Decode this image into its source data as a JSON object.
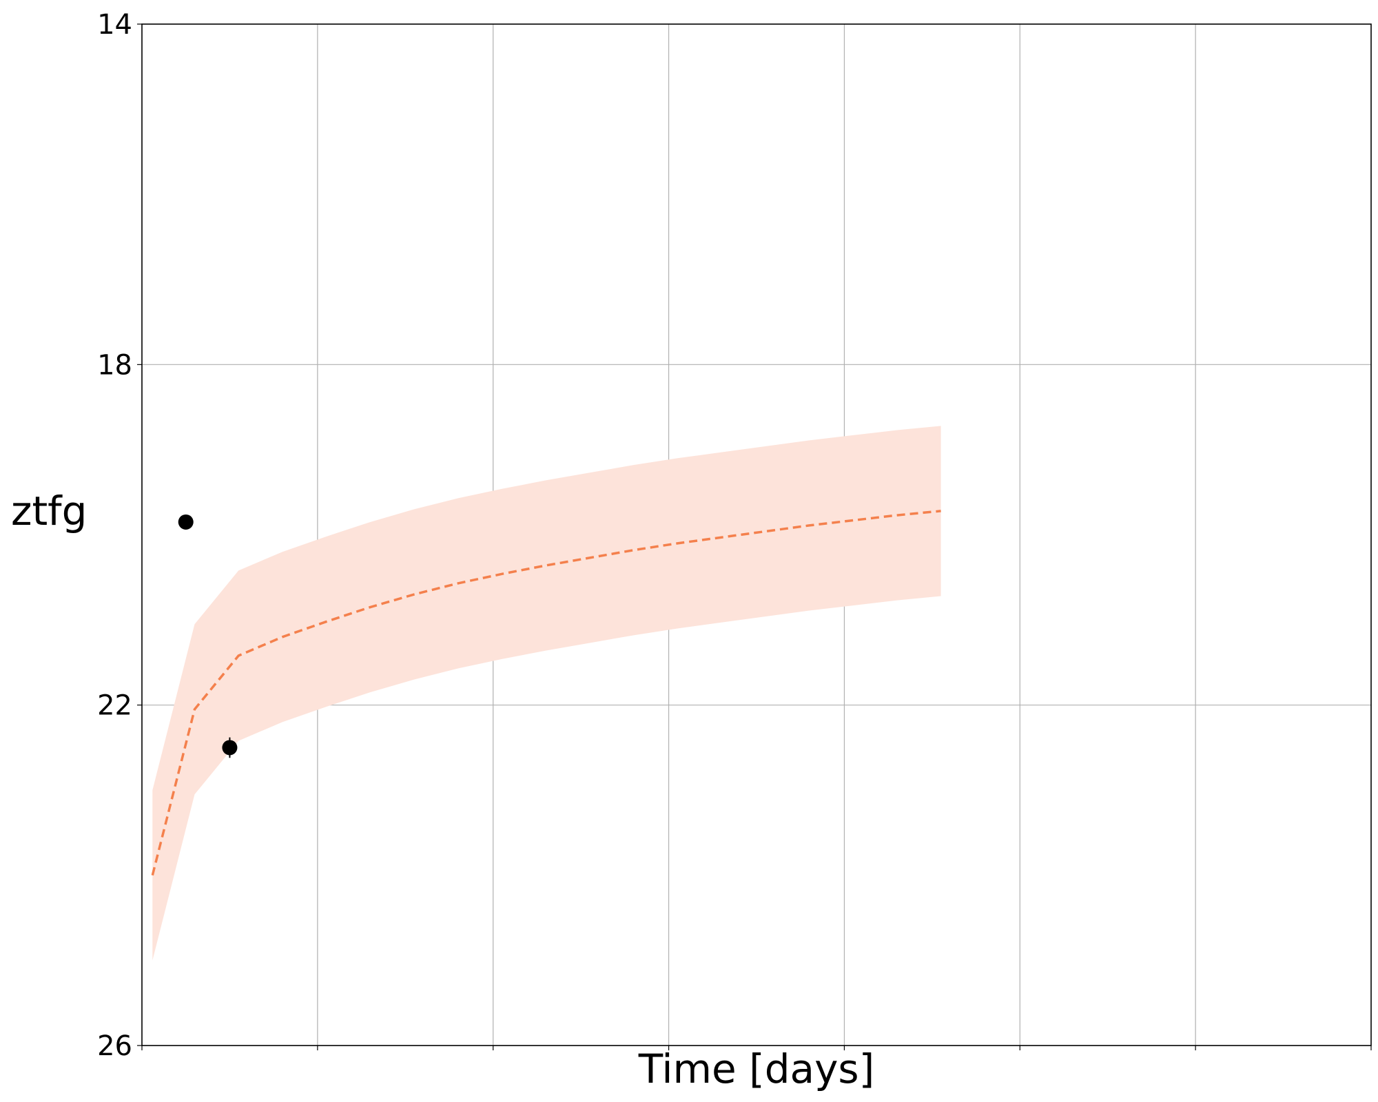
{
  "chart_data": {
    "type": "line",
    "xlabel": "Time [days]",
    "ylabel": "ztfg",
    "x_tick_labels_shown": false,
    "xlim": [
      0,
      14
    ],
    "ylim": [
      26,
      14
    ],
    "y_inverted": true,
    "yticks": [
      14,
      18,
      22,
      26
    ],
    "grid": true,
    "series": [
      {
        "kind": "model",
        "style": "dashed",
        "color": "#f4804c",
        "x": [
          0.12,
          0.6,
          1.1,
          1.6,
          2.1,
          2.6,
          3.1,
          3.6,
          4.1,
          4.6,
          5.1,
          5.6,
          6.1,
          6.6,
          7.1,
          7.6,
          8.1,
          8.6,
          9.1
        ],
        "y": [
          24.0,
          22.05,
          21.42,
          21.2,
          21.02,
          20.85,
          20.7,
          20.57,
          20.46,
          20.36,
          20.27,
          20.18,
          20.1,
          20.03,
          19.96,
          19.89,
          19.83,
          19.77,
          19.72
        ],
        "band_color": "#fde3da",
        "band_upper": [
          23.0,
          21.05,
          20.42,
          20.2,
          20.02,
          19.85,
          19.7,
          19.57,
          19.46,
          19.36,
          19.27,
          19.18,
          19.1,
          19.03,
          18.96,
          18.89,
          18.83,
          18.77,
          18.72
        ],
        "band_lower": [
          25.0,
          23.05,
          22.42,
          22.2,
          22.02,
          21.85,
          21.7,
          21.57,
          21.46,
          21.36,
          21.27,
          21.18,
          21.1,
          21.03,
          20.96,
          20.89,
          20.83,
          20.77,
          20.72
        ]
      },
      {
        "kind": "observed",
        "style": "markers",
        "color": "#000000",
        "x": [
          0.5,
          1.0
        ],
        "y": [
          19.85,
          22.5
        ],
        "yerr": [
          0.0,
          0.12
        ]
      }
    ]
  }
}
